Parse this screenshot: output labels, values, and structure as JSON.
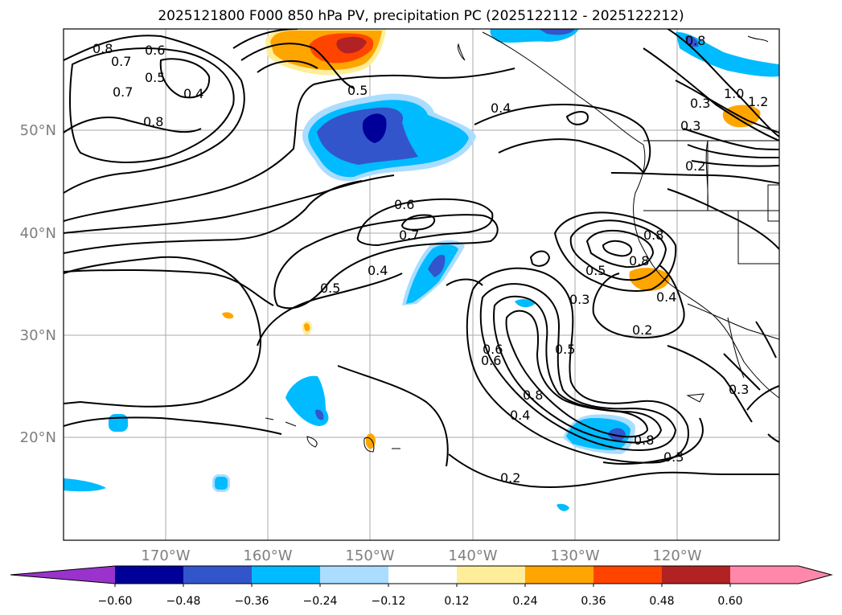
{
  "title": "2025121800 F000 850 hPa PV, precipitation PC (2025122112 - 2025122212)",
  "map": {
    "lon_labels": [
      "170°W",
      "160°W",
      "150°W",
      "140°W",
      "130°W",
      "120°W"
    ],
    "lat_labels": [
      "50°N",
      "40°N",
      "30°N",
      "20°N"
    ],
    "contour_labels": [
      "0.8",
      "0.7",
      "0.6",
      "0.5",
      "0.4",
      "0.7",
      "0.8",
      "0.5",
      "0.4",
      "0.6",
      "0.7",
      "0.5",
      "0.4",
      "0.6",
      "0.8",
      "0.8",
      "0.3",
      "1.0",
      "1.2",
      "0.3",
      "0.2",
      "0.8",
      "0.5",
      "0.4",
      "0.3",
      "0.2",
      "0.6",
      "0.5",
      "0.8",
      "0.4",
      "0.2",
      "0.8",
      "0.3",
      "0.3"
    ]
  },
  "colorbar": {
    "colors": [
      "#9933cc",
      "#000099",
      "#3355cc",
      "#00bbff",
      "#aaddff",
      "#ffffff",
      "#ffee99",
      "#ffa500",
      "#ff4400",
      "#b22222",
      "#ff88aa",
      "#ff88aa"
    ],
    "tick_labels": [
      "−0.60",
      "−0.48",
      "−0.36",
      "−0.24",
      "−0.12",
      "0.12",
      "0.24",
      "0.36",
      "0.48",
      "0.60"
    ]
  }
}
